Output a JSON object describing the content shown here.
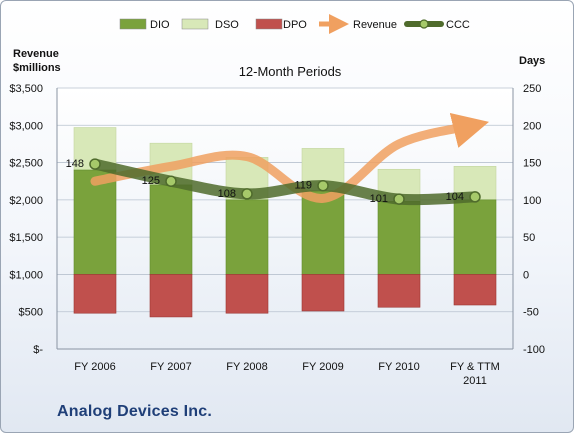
{
  "company": "Analog Devices Inc.",
  "chart_data": {
    "type": "bar",
    "title": "12-Month Periods",
    "left_axis_title": [
      "Revenue",
      "$millions"
    ],
    "right_axis_title": "Days",
    "left_ylim": [
      0,
      3500
    ],
    "left_ticks": [
      "$-",
      "$500",
      "$1,000",
      "$1,500",
      "$2,000",
      "$2,500",
      "$3,000",
      "$3,500"
    ],
    "right_ylim": [
      -100,
      250
    ],
    "right_ticks": [
      "-100",
      "-50",
      "0",
      "50",
      "100",
      "150",
      "200",
      "250"
    ],
    "grid": true,
    "legend_position": "top",
    "categories": [
      [
        "FY 2006"
      ],
      [
        "FY 2007"
      ],
      [
        "FY 2008"
      ],
      [
        "FY 2009"
      ],
      [
        "FY 2010"
      ],
      [
        "FY & TTM",
        "2011"
      ]
    ],
    "series": [
      {
        "name": "DIO",
        "axis": "right",
        "color": "#7aa23c",
        "values": [
          140,
          120,
          100,
          112,
          98,
          100
        ]
      },
      {
        "name": "DSO",
        "axis": "right",
        "color": "#d8e8b8",
        "values": [
          57,
          56,
          57,
          57,
          43,
          45
        ]
      },
      {
        "name": "DPO",
        "axis": "right",
        "color": "#c0504d",
        "values": [
          -52,
          -57,
          -52,
          -49,
          -44,
          -41
        ]
      },
      {
        "name": "Revenue",
        "axis": "left",
        "color": "#f0a060",
        "values": [
          2250,
          2450,
          2580,
          2020,
          2750,
          3000
        ]
      },
      {
        "name": "CCC",
        "axis": "right",
        "color": "#4f6b2c",
        "values": [
          148,
          125,
          108,
          119,
          101,
          104
        ],
        "labels": [
          "148",
          "125",
          "108",
          "119",
          "101",
          "104"
        ]
      }
    ]
  }
}
